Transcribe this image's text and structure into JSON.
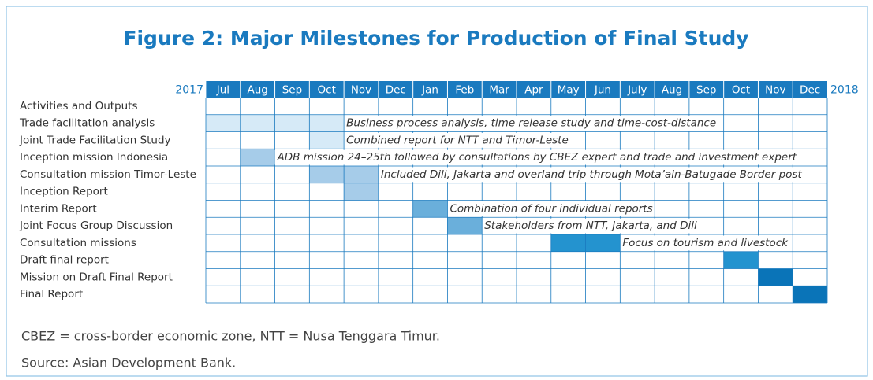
{
  "title": "Figure 2: Major Milestones for Production of Final Study",
  "start_year": "2017",
  "end_year": "2018",
  "months": [
    "Jul",
    "Aug",
    "Sep",
    "Oct",
    "Nov",
    "Dec",
    "Jan",
    "Feb",
    "Mar",
    "Apr",
    "May",
    "Jun",
    "July",
    "Aug",
    "Sep",
    "Oct",
    "Nov",
    "Dec"
  ],
  "header": "Activities and Outputs",
  "rows": [
    {
      "label": "Trade facilitation analysis",
      "start": 0,
      "end": 3,
      "color": "#d6eaf7",
      "note": "Business process analysis, time release study and time-cost-distance"
    },
    {
      "label": "Joint Trade Facilitation Study",
      "start": 3,
      "end": 3,
      "color": "#d6eaf7",
      "note": "Combined report for NTT and Timor-Leste"
    },
    {
      "label": "Inception mission Indonesia",
      "start": 1,
      "end": 1,
      "color": "#a6cce9",
      "note": "ADB mission 24–25th followed by consultations by CBEZ expert and trade and investment expert"
    },
    {
      "label": "Consultation mission Timor-Leste",
      "start": 3,
      "end": 4,
      "color": "#a6cce9",
      "note": "Included Dili, Jakarta and overland trip through Mota’ain-Batugade Border post"
    },
    {
      "label": "Inception Report",
      "start": 4,
      "end": 4,
      "color": "#a6cce9"
    },
    {
      "label": "Interim Report",
      "start": 6,
      "end": 6,
      "color": "#6aafdb",
      "note": "Combination of four individual reports"
    },
    {
      "label": "Joint Focus Group Discussion",
      "start": 7,
      "end": 7,
      "color": "#6aafdb",
      "note": "Stakeholders from NTT, Jakarta, and Dili"
    },
    {
      "label": "Consultation missions",
      "start": 10,
      "end": 11,
      "color": "#2493cf",
      "note": "Focus on tourism and livestock"
    },
    {
      "label": "Draft final report",
      "start": 15,
      "end": 15,
      "color": "#2493cf"
    },
    {
      "label": "Mission on Draft Final Report",
      "start": 16,
      "end": 16,
      "color": "#0a74b8"
    },
    {
      "label": "Final Report",
      "start": 17,
      "end": 17,
      "color": "#0a74b8"
    }
  ],
  "footnote": "CBEZ = cross-border economic zone, NTT = Nusa Tenggara Timur.",
  "source": "Source: Asian Development Bank."
}
